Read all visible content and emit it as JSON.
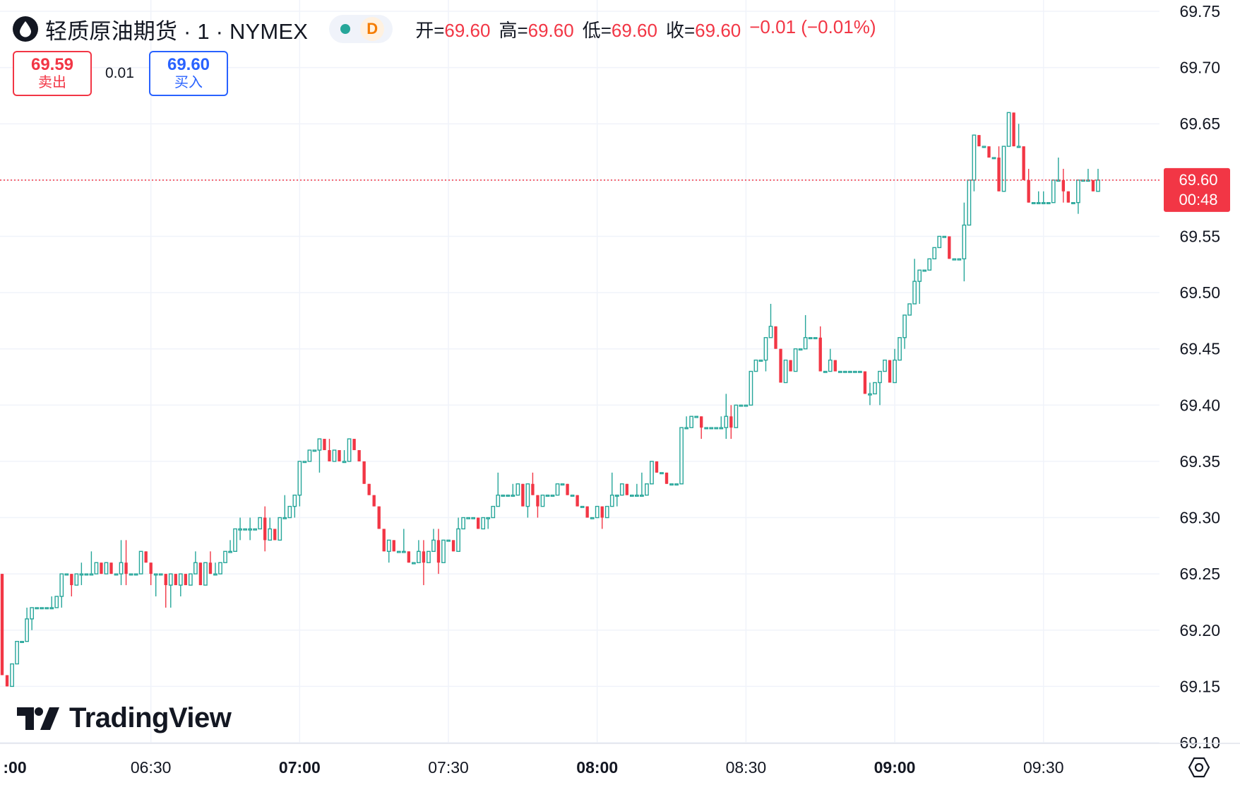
{
  "header": {
    "symbol_title": "轻质原油期货 · 1 · NYMEX",
    "status_badge": "D",
    "ohlc": [
      {
        "key": "开=",
        "value": "69.60"
      },
      {
        "key": "高=",
        "value": "69.60"
      },
      {
        "key": "低=",
        "value": "69.60"
      },
      {
        "key": "收=",
        "value": "69.60"
      }
    ],
    "change": "−0.01 (−0.01%)"
  },
  "trade": {
    "sell_price": "69.59",
    "sell_label": "卖出",
    "spread": "0.01",
    "buy_price": "69.60",
    "buy_label": "买入"
  },
  "branding": {
    "logo_text": "TradingView"
  },
  "colors": {
    "up": "#26a69a",
    "down": "#f23645",
    "grid": "#f0f3fa",
    "text": "#131722",
    "buy": "#2962ff"
  },
  "chart_data": {
    "type": "candlestick",
    "interval": "1",
    "last_price": "69.60",
    "countdown": "00:48",
    "price_axis": {
      "ticks": [
        "69.75",
        "69.70",
        "69.65",
        "69.60",
        "69.55",
        "69.50",
        "69.45",
        "69.40",
        "69.35",
        "69.30",
        "69.25",
        "69.20",
        "69.15",
        "69.10"
      ],
      "range": [
        69.1,
        69.75
      ]
    },
    "time_axis": [
      {
        "label": ":00",
        "bold": true
      },
      {
        "label": "06:30",
        "bold": false
      },
      {
        "label": "07:00",
        "bold": true
      },
      {
        "label": "07:30",
        "bold": false
      },
      {
        "label": "08:00",
        "bold": true
      },
      {
        "label": "08:30",
        "bold": false
      },
      {
        "label": "09:00",
        "bold": true
      },
      {
        "label": "09:30",
        "bold": false
      }
    ],
    "time_range": [
      "06:00",
      "09:42"
    ],
    "waypoints": [
      [
        "06:00",
        69.25
      ],
      [
        "06:01",
        69.17
      ],
      [
        "06:02",
        69.15
      ],
      [
        "06:05",
        69.2
      ],
      [
        "06:10",
        69.22
      ],
      [
        "06:14",
        69.25
      ],
      [
        "06:18",
        69.25
      ],
      [
        "06:28",
        69.26
      ],
      [
        "06:35",
        69.25
      ],
      [
        "06:44",
        69.25
      ],
      [
        "06:48",
        69.28
      ],
      [
        "06:52",
        69.29
      ],
      [
        "06:58",
        69.29
      ],
      [
        "07:00",
        69.33
      ],
      [
        "07:02",
        69.36
      ],
      [
        "07:05",
        69.36
      ],
      [
        "07:12",
        69.36
      ],
      [
        "07:15",
        69.32
      ],
      [
        "07:18",
        69.27
      ],
      [
        "07:22",
        69.26
      ],
      [
        "07:28",
        69.27
      ],
      [
        "07:35",
        69.29
      ],
      [
        "07:40",
        69.31
      ],
      [
        "07:48",
        69.32
      ],
      [
        "07:55",
        69.32
      ],
      [
        "08:00",
        69.31
      ],
      [
        "08:05",
        69.32
      ],
      [
        "08:10",
        69.31
      ],
      [
        "08:12",
        69.34
      ],
      [
        "08:17",
        69.33
      ],
      [
        "08:18",
        69.39
      ],
      [
        "08:23",
        69.38
      ],
      [
        "08:28",
        69.39
      ],
      [
        "08:31",
        69.41
      ],
      [
        "08:33",
        69.44
      ],
      [
        "08:36",
        69.46
      ],
      [
        "08:38",
        69.43
      ],
      [
        "08:43",
        69.46
      ],
      [
        "08:46",
        69.44
      ],
      [
        "08:51",
        69.43
      ],
      [
        "08:56",
        69.42
      ],
      [
        "09:00",
        69.43
      ],
      [
        "09:02",
        69.46
      ],
      [
        "09:05",
        69.51
      ],
      [
        "09:08",
        69.53
      ],
      [
        "09:10",
        69.56
      ],
      [
        "09:12",
        69.54
      ],
      [
        "09:14",
        69.53
      ],
      [
        "09:16",
        69.6
      ],
      [
        "09:17",
        69.64
      ],
      [
        "09:20",
        69.62
      ],
      [
        "09:22",
        69.6
      ],
      [
        "09:24",
        69.65
      ],
      [
        "09:26",
        69.62
      ],
      [
        "09:28",
        69.57
      ],
      [
        "09:31",
        69.58
      ],
      [
        "09:33",
        69.6
      ],
      [
        "09:36",
        69.58
      ],
      [
        "09:39",
        69.6
      ],
      [
        "09:41",
        69.6
      ]
    ]
  }
}
